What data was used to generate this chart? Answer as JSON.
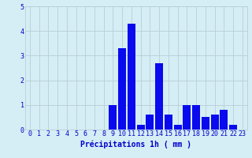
{
  "hours": [
    0,
    1,
    2,
    3,
    4,
    5,
    6,
    7,
    8,
    9,
    10,
    11,
    12,
    13,
    14,
    15,
    16,
    17,
    18,
    19,
    20,
    21,
    22,
    23
  ],
  "values": [
    0.0,
    0.0,
    0.0,
    0.0,
    0.0,
    0.0,
    0.0,
    0.0,
    0.0,
    1.0,
    3.3,
    4.3,
    0.2,
    0.6,
    2.7,
    0.6,
    0.2,
    1.0,
    1.0,
    0.5,
    0.6,
    0.8,
    0.2,
    0.0
  ],
  "bar_color": "#0a0aee",
  "background_color": "#d5eef5",
  "grid_color": "#b8cdd8",
  "text_color": "#0000cc",
  "xlabel": "Précipitations 1h ( mm )",
  "ylim": [
    0,
    5
  ],
  "yticks": [
    0,
    1,
    2,
    3,
    4,
    5
  ],
  "xticks": [
    0,
    1,
    2,
    3,
    4,
    5,
    6,
    7,
    8,
    9,
    10,
    11,
    12,
    13,
    14,
    15,
    16,
    17,
    18,
    19,
    20,
    21,
    22,
    23
  ],
  "xlabel_fontsize": 7.0,
  "tick_fontsize": 6.0
}
